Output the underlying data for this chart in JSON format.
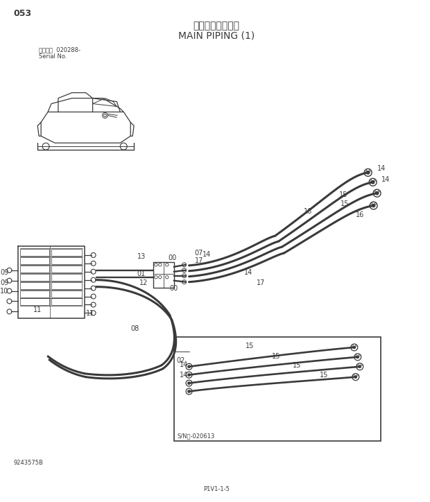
{
  "page_number": "053",
  "title_japanese": "メイン配管（１）",
  "title_english": "MAIN PIPING (1)",
  "serial_label": "適用号機  020288-",
  "serial_no": "Serial No.",
  "doc_number": "9243575B",
  "page_ref": "P1V1-1-5",
  "bg_color": "#ffffff",
  "line_color": "#3a3a3a",
  "inset_sn": "S/N：-020613"
}
